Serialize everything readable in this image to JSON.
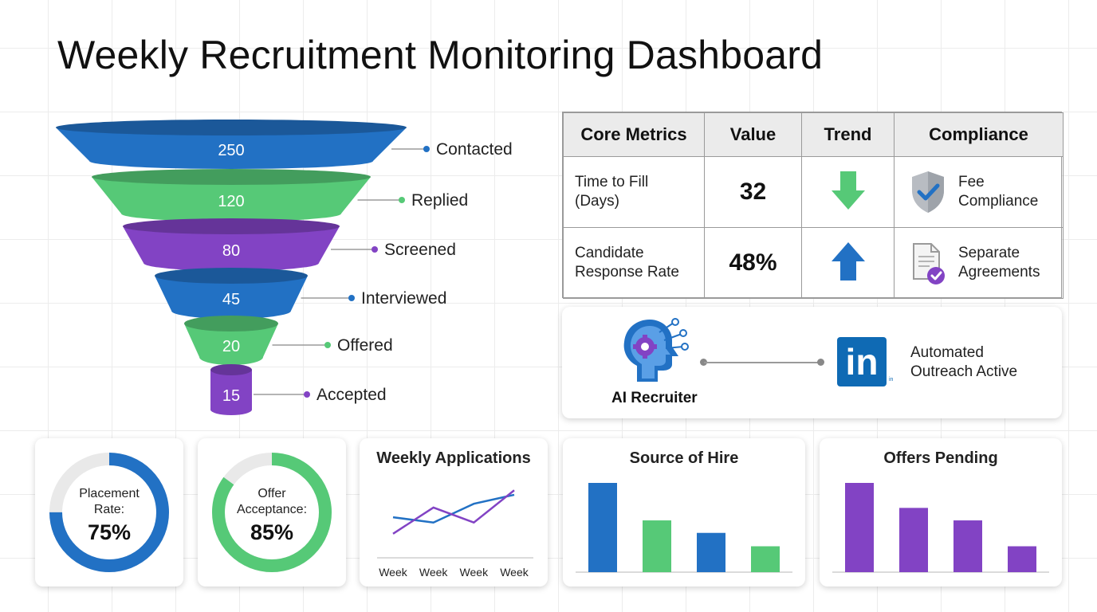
{
  "header": {
    "title": "Weekly Recruitment Monitoring Dashboard"
  },
  "colors": {
    "blue": "#2271c4",
    "green": "#56c977",
    "purple": "#8243c4",
    "track": "#e9e9e9"
  },
  "funnel": {
    "stages": [
      {
        "label": "Contacted",
        "value": "250",
        "color": "blue"
      },
      {
        "label": "Replied",
        "value": "120",
        "color": "green"
      },
      {
        "label": "Screened",
        "value": "80",
        "color": "purple"
      },
      {
        "label": "Interviewed",
        "value": "45",
        "color": "blue"
      },
      {
        "label": "Offered",
        "value": "20",
        "color": "green"
      },
      {
        "label": "Accepted",
        "value": "15",
        "color": "purple"
      }
    ]
  },
  "metrics": {
    "headers": [
      "Core Metrics",
      "Value",
      "Trend",
      "Compliance"
    ],
    "rows": [
      {
        "name_line1": "Time to Fill",
        "name_line2": "(Days)",
        "value": "32",
        "trend": "down",
        "trend_color": "#56c977",
        "compliance_icon": "shield-check-icon",
        "compliance_line1": "Fee",
        "compliance_line2": "Compliance"
      },
      {
        "name_line1": "Candidate",
        "name_line2": "Response Rate",
        "value": "48%",
        "trend": "up",
        "trend_color": "#2271c4",
        "compliance_icon": "document-check-icon",
        "compliance_line1": "Separate",
        "compliance_line2": "Agreements"
      }
    ]
  },
  "ai_card": {
    "label": "AI Recruiter",
    "logo_text": "in",
    "logo_small": "in",
    "status_line1": "Automated",
    "status_line2": "Outreach Active"
  },
  "donuts": [
    {
      "line1": "Placement",
      "line2": "Rate:",
      "percent_label": "75%",
      "fraction": 0.75,
      "color": "blue"
    },
    {
      "line1": "Offer",
      "line2": "Acceptance:",
      "percent_label": "85%",
      "fraction": 0.85,
      "color": "green"
    }
  ],
  "chart_data": [
    {
      "type": "line",
      "title": "Weekly Applications",
      "categories": [
        "Week",
        "Week",
        "Week",
        "Week"
      ],
      "series": [
        {
          "values": [
            52,
            45,
            70,
            82
          ],
          "color": "#2271c4"
        },
        {
          "values": [
            30,
            65,
            45,
            88
          ],
          "color": "#8243c4"
        }
      ],
      "ylim": [
        0,
        100
      ]
    },
    {
      "type": "bar",
      "title": "Source of Hire",
      "values": [
        100,
        58,
        44,
        29
      ],
      "colors": [
        "#2271c4",
        "#56c977",
        "#2271c4",
        "#56c977"
      ],
      "ylim": [
        0,
        100
      ]
    },
    {
      "type": "bar",
      "title": "Offers Pending",
      "values": [
        100,
        72,
        58,
        29
      ],
      "colors": [
        "#8243c4",
        "#8243c4",
        "#8243c4",
        "#8243c4"
      ],
      "ylim": [
        0,
        100
      ]
    }
  ]
}
